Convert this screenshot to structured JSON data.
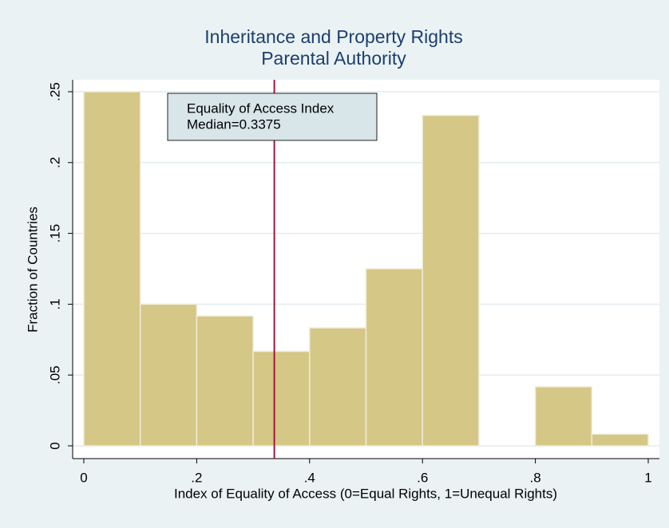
{
  "chart_data": {
    "type": "histogram",
    "title": "Inheritance and Property Rights",
    "subtitle": "Parental Authority",
    "x_label": "Index of Equality of Access (0=Equal Rights, 1=Unequal Rights)",
    "y_label": "Fraction of Countries",
    "bins": [
      0,
      0.1,
      0.2,
      0.3,
      0.4,
      0.5,
      0.6,
      0.7,
      0.8,
      0.9,
      1.0
    ],
    "values": [
      0.25,
      0.1,
      0.0917,
      0.0667,
      0.0833,
      0.125,
      0.2333,
      0,
      0.0417,
      0.0083
    ],
    "color": "#d5c786",
    "median": 0.3375,
    "median_color": "#a3163e",
    "annotation": [
      "Equality of Access Index",
      "Median=0.3375"
    ],
    "xlim": [
      0,
      1
    ],
    "ylim": [
      0,
      0.25
    ],
    "xticks": [
      0,
      {
        "value": 0.2,
        "label": ".2"
      },
      {
        "value": 0.4,
        "label": ".4"
      },
      {
        "value": 0.6,
        "label": ".6"
      },
      {
        "value": 0.8,
        "label": ".8"
      },
      1
    ],
    "yticks": [
      0,
      {
        "value": 0.05,
        "label": ".05"
      },
      {
        "value": 0.1,
        "label": ".1"
      },
      {
        "value": 0.15,
        "label": ".15"
      },
      {
        "value": 0.2,
        "label": ".2"
      },
      {
        "value": 0.25,
        "label": ".25"
      }
    ],
    "grid": true
  }
}
